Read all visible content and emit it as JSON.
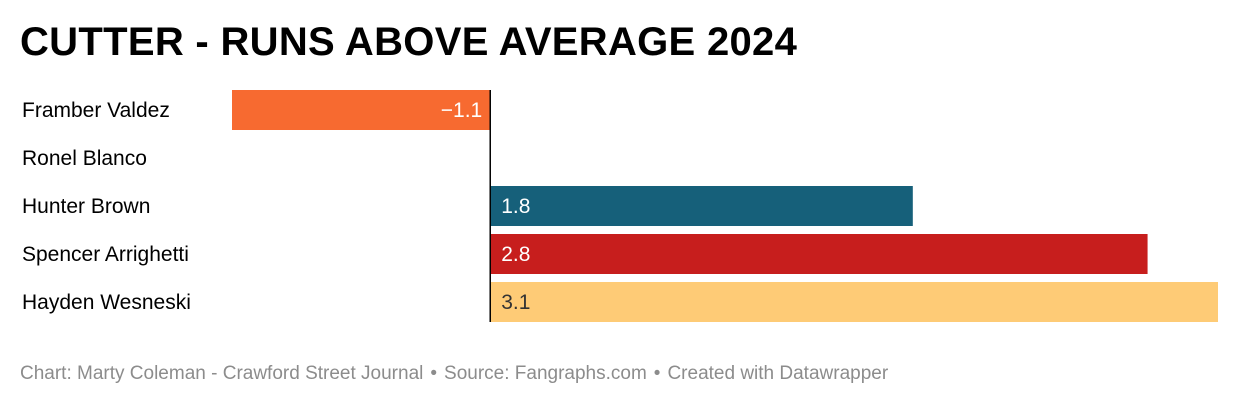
{
  "title": "CUTTER - RUNS ABOVE AVERAGE 2024",
  "chart_data": {
    "type": "bar",
    "orientation": "horizontal",
    "title": "CUTTER - RUNS ABOVE AVERAGE 2024",
    "categories": [
      "Framber Valdez",
      "Ronel Blanco",
      "Hunter Brown",
      "Spencer Arrighetti",
      "Hayden Wesneski"
    ],
    "values": [
      -1.1,
      null,
      1.8,
      2.8,
      3.1
    ],
    "value_labels": [
      "−1.1",
      "",
      "1.8",
      "2.8",
      "3.1"
    ],
    "colors": [
      "#f76a30",
      "",
      "#16607a",
      "#c71e1d",
      "#fecb76"
    ],
    "label_colors": [
      "#ffffff",
      "",
      "#ffffff",
      "#ffffff",
      "#333333"
    ],
    "xlim": [
      -1.1,
      3.1
    ],
    "grid": false,
    "legend": "none"
  },
  "footer": {
    "credit": "Chart: Marty Coleman - Crawford Street Journal",
    "source": "Source: Fangraphs.com",
    "tool": "Created with Datawrapper",
    "separator": "•"
  }
}
